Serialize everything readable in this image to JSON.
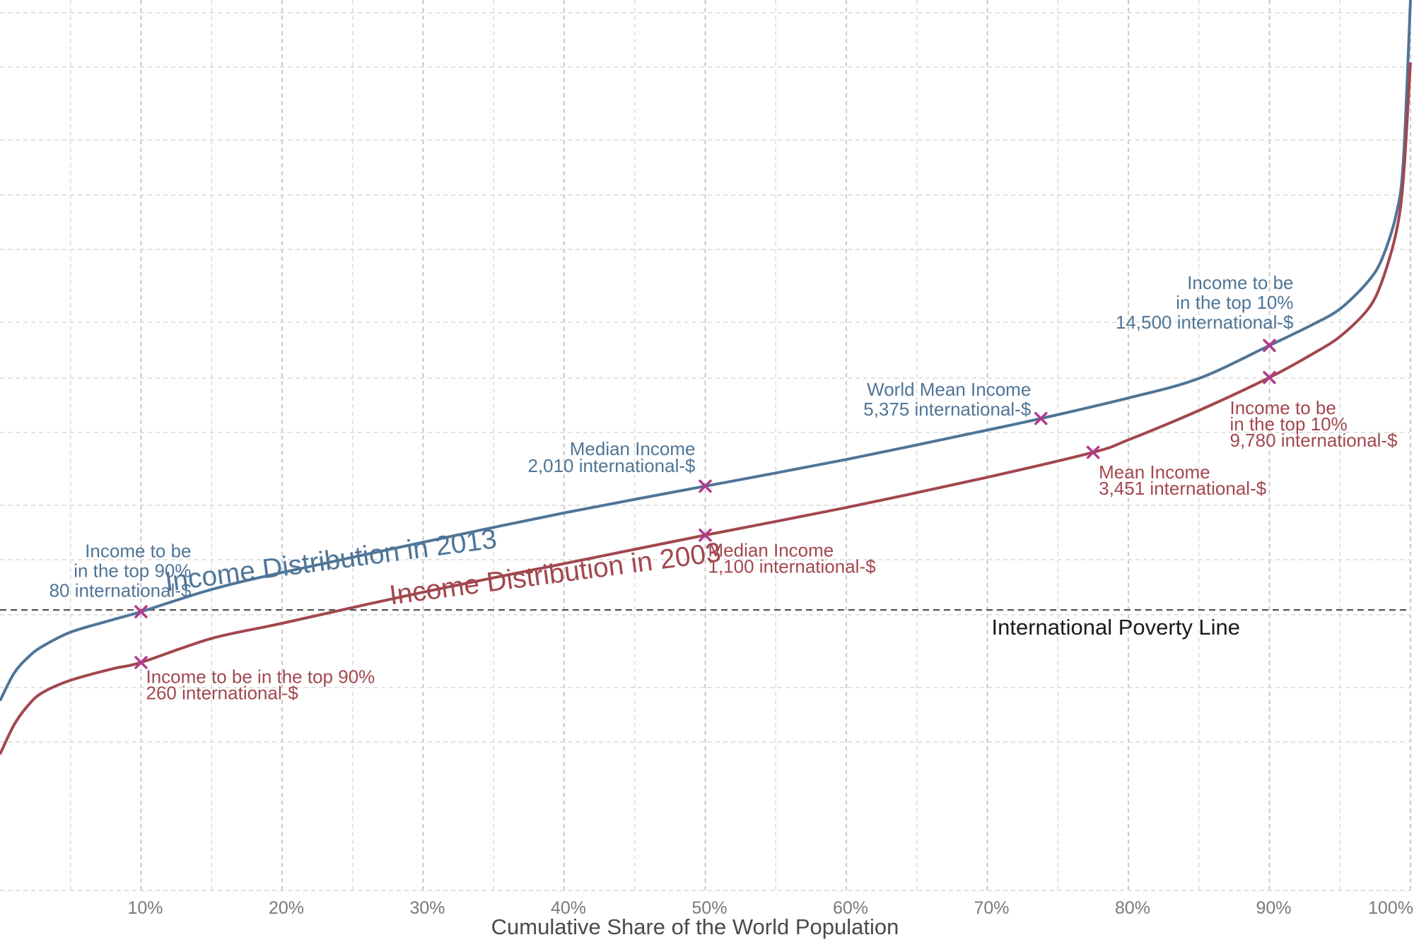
{
  "colors": {
    "series_2013": "#4f7597",
    "series_2003": "#a2474e",
    "marker": "#b23a8a",
    "poverty": "#555555"
  },
  "chart_data": {
    "type": "line",
    "xlabel": "Cumulative Share of the World Population",
    "ylabel": "",
    "xlim": [
      0,
      100
    ],
    "ylim": [
      0,
      100
    ],
    "x_ticks": [
      10,
      20,
      30,
      40,
      50,
      60,
      70,
      80,
      90,
      100
    ],
    "x_tick_labels": [
      "10%",
      "20%",
      "30%",
      "40%",
      "50%",
      "60%",
      "70%",
      "80%",
      "90%",
      "100%"
    ],
    "grid": true,
    "series": [
      {
        "name": "Income Distribution in 2013",
        "label": "Income Distribution in 2013",
        "color": "#4f7597",
        "points": [
          [
            0,
            21.3
          ],
          [
            1,
            24.4
          ],
          [
            2,
            26.2
          ],
          [
            3,
            27.4
          ],
          [
            5,
            29.0
          ],
          [
            8,
            30.4
          ],
          [
            10,
            31.3
          ],
          [
            15,
            33.8
          ],
          [
            20,
            35.7
          ],
          [
            30,
            39.1
          ],
          [
            40,
            42.4
          ],
          [
            50,
            45.4
          ],
          [
            60,
            48.4
          ],
          [
            70,
            51.7
          ],
          [
            73.8,
            53.0
          ],
          [
            80,
            55.3
          ],
          [
            85,
            57.5
          ],
          [
            90,
            61.2
          ],
          [
            93,
            63.5
          ],
          [
            95,
            65.3
          ],
          [
            97,
            68.4
          ],
          [
            98,
            71.0
          ],
          [
            99,
            76.0
          ],
          [
            99.5,
            82.0
          ],
          [
            100,
            100
          ]
        ]
      },
      {
        "name": "Income Distribution in 2003",
        "label": "Income Distribution in 2003",
        "color": "#a2474e",
        "points": [
          [
            0,
            15.3
          ],
          [
            1,
            18.6
          ],
          [
            2,
            20.8
          ],
          [
            3,
            22.2
          ],
          [
            5,
            23.6
          ],
          [
            8,
            24.9
          ],
          [
            10,
            25.6
          ],
          [
            15,
            28.3
          ],
          [
            20,
            30.0
          ],
          [
            30,
            33.5
          ],
          [
            40,
            36.7
          ],
          [
            50,
            39.9
          ],
          [
            60,
            43.0
          ],
          [
            70,
            46.4
          ],
          [
            77.5,
            49.2
          ],
          [
            80,
            50.6
          ],
          [
            85,
            53.9
          ],
          [
            90,
            57.6
          ],
          [
            93,
            60.2
          ],
          [
            95,
            62.2
          ],
          [
            97,
            65.3
          ],
          [
            98,
            68.5
          ],
          [
            99,
            74.0
          ],
          [
            99.5,
            80.0
          ],
          [
            100,
            93.0
          ]
        ]
      }
    ],
    "reference_line": {
      "label": "International Poverty Line",
      "y": 31.5,
      "style": "dashed"
    },
    "annotations": [
      {
        "series": "2013",
        "x": 10,
        "y": 31.3,
        "lines": [
          "Income to be",
          "in the top 90%",
          "80 international-$"
        ]
      },
      {
        "series": "2013",
        "x": 50,
        "y": 45.4,
        "lines": [
          "Median Income",
          "2,010 international-$"
        ]
      },
      {
        "series": "2013",
        "x": 73.8,
        "y": 53.0,
        "lines": [
          "World Mean Income",
          "5,375 international-$"
        ]
      },
      {
        "series": "2013",
        "x": 90,
        "y": 61.2,
        "lines": [
          "Income to be",
          "in the top 10%",
          "14,500 international-$"
        ]
      },
      {
        "series": "2003",
        "x": 10,
        "y": 25.6,
        "lines": [
          "Income to be in the top 90%",
          "260 international-$"
        ]
      },
      {
        "series": "2003",
        "x": 50,
        "y": 39.9,
        "lines": [
          "Median Income",
          "1,100 international-$"
        ]
      },
      {
        "series": "2003",
        "x": 77.5,
        "y": 49.2,
        "lines": [
          "Mean Income",
          "3,451 international-$"
        ]
      },
      {
        "series": "2003",
        "x": 90,
        "y": 57.6,
        "lines": [
          "Income to be",
          "in the top 10%",
          "9,780 international-$"
        ]
      }
    ]
  }
}
